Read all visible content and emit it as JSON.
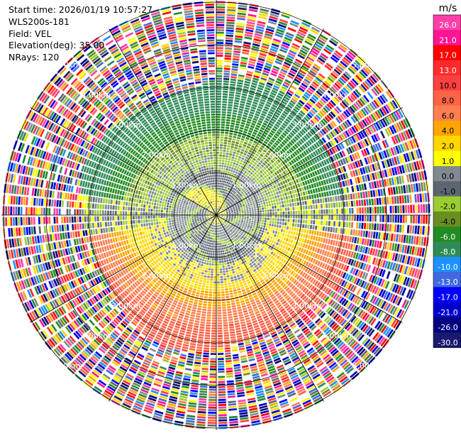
{
  "info": {
    "start_time": "Start time: 2026/01/19 10:57:27",
    "station": "WLS200s-181",
    "field": "Field: VEL",
    "elevation": "Elevation(deg): 35.00",
    "nrays": "NRays: 120"
  },
  "chart_data": {
    "type": "heatmap",
    "projection": "polar (PPI)",
    "field": "VEL",
    "n_rays": 120,
    "range_rings_km": [
      1.0,
      2.0,
      3.0,
      4.0,
      5.0
    ],
    "range_ring_labels": [
      "1.00km",
      "2.00km",
      "3.00km",
      "4.00km",
      "5.00km"
    ],
    "colorbar": {
      "unit": "m/s",
      "ticks": [
        "26.0",
        "21.0",
        "17.0",
        "13.0",
        "10.0",
        "8.0",
        "6.0",
        "4.0",
        "2.0",
        "1.0",
        "0.0",
        "-1.0",
        "-2.0",
        "-4.0",
        "-6.0",
        "-8.0",
        "-10.0",
        "-13.0",
        "-17.0",
        "-21.0",
        "-26.0",
        "-30.0"
      ],
      "colors": [
        "#ff3fa9",
        "#ff1493",
        "#ff0000",
        "#ff2a2a",
        "#ff4040",
        "#ff6347",
        "#ff7f50",
        "#ffa500",
        "#ffd700",
        "#ffff00",
        "#808a90",
        "#5c6670",
        "#9acd32",
        "#6b8e23",
        "#228b22",
        "#2e8b57",
        "#1e90ff",
        "#4169e1",
        "#0000ff",
        "#0000cd",
        "#000080",
        "#191970"
      ]
    },
    "pattern": {
      "inner_noise_free_range_km": [
        0,
        3.0
      ],
      "inner_band": "alternating 0/-1/-2 (gray/green) with +1..+2 (yellow) near radar",
      "south_sector": "positive 2..8 m/s (yellow/orange/coral) from 1.3 to 3.2 km",
      "north_sector": "negative -1..-8 m/s (green) from 1.3 to 3.2 km",
      "outer_noise_km": [
        3.0,
        5.8
      ]
    }
  }
}
